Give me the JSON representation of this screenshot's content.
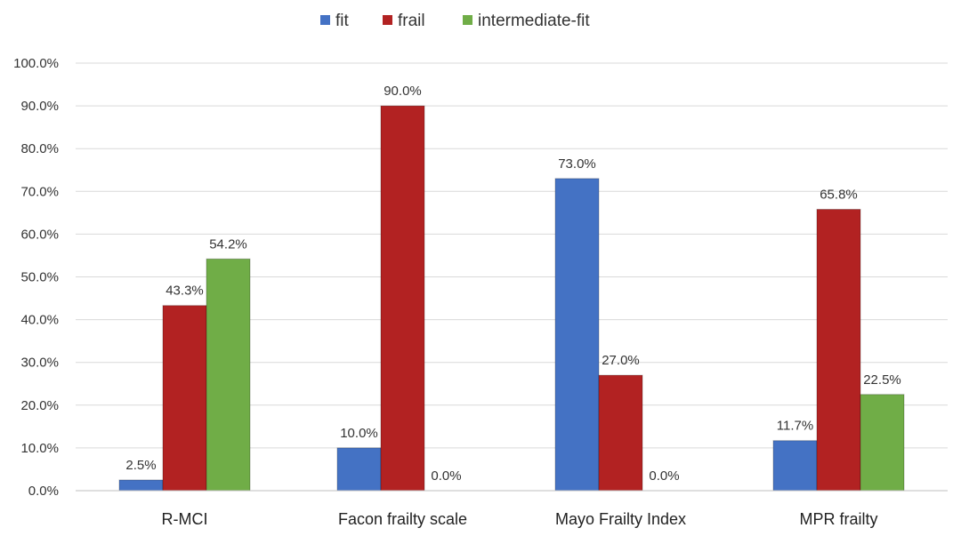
{
  "chart_data": {
    "type": "bar",
    "categories": [
      "R-MCI",
      "Facon frailty scale",
      "Mayo Frailty Index",
      "MPR frailty"
    ],
    "series": [
      {
        "name": "fit",
        "color": "#4472c4",
        "values": [
          2.5,
          10.0,
          73.0,
          11.7
        ],
        "labels": [
          "2.5%",
          "10.0%",
          "73.0%",
          "11.7%"
        ]
      },
      {
        "name": "frail",
        "color": "#b22222",
        "values": [
          43.3,
          90.0,
          27.0,
          65.8
        ],
        "labels": [
          "43.3%",
          "90.0%",
          "27.0%",
          "65.8%"
        ]
      },
      {
        "name": "intermediate-fit",
        "color": "#70ad47",
        "values": [
          54.2,
          0.0,
          0.0,
          22.5
        ],
        "labels": [
          "54.2%",
          "0.0%",
          "0.0%",
          "22.5%"
        ]
      }
    ],
    "yticks": [
      "0.0%",
      "10.0%",
      "20.0%",
      "30.0%",
      "40.0%",
      "50.0%",
      "60.0%",
      "70.0%",
      "80.0%",
      "90.0%",
      "100.0%"
    ],
    "ylim": [
      0,
      100
    ],
    "grid": true,
    "legend": "top-center"
  }
}
